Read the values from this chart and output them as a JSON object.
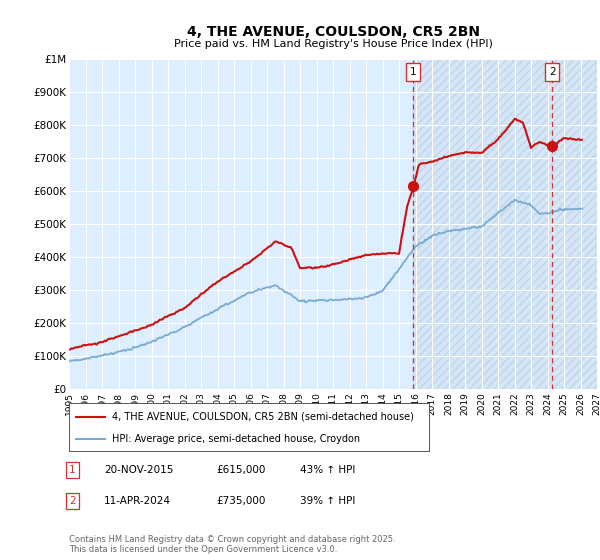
{
  "title": "4, THE AVENUE, COULSDON, CR5 2BN",
  "subtitle": "Price paid vs. HM Land Registry's House Price Index (HPI)",
  "ylim": [
    0,
    1000000
  ],
  "yticks": [
    0,
    100000,
    200000,
    300000,
    400000,
    500000,
    600000,
    700000,
    800000,
    900000,
    1000000
  ],
  "ytick_labels": [
    "£0",
    "£100K",
    "£200K",
    "£300K",
    "£400K",
    "£500K",
    "£600K",
    "£700K",
    "£800K",
    "£900K",
    "£1M"
  ],
  "hpi_color": "#7aaad0",
  "price_color": "#cc1111",
  "vline_color": "#cc3333",
  "plot_bg": "#ddeeff",
  "hatch_bg": "#ccd9ee",
  "grid_color": "#ffffff",
  "sale1_x": 2015.88,
  "sale1_y": 615000,
  "sale2_x": 2024.28,
  "sale2_y": 735000,
  "sale1_label": "20-NOV-2015",
  "sale1_price": "£615,000",
  "sale1_hpi": "43% ↑ HPI",
  "sale2_label": "11-APR-2024",
  "sale2_price": "£735,000",
  "sale2_hpi": "39% ↑ HPI",
  "footer": "Contains HM Land Registry data © Crown copyright and database right 2025.\nThis data is licensed under the Open Government Licence v3.0.",
  "legend_line1": "4, THE AVENUE, COULSDON, CR5 2BN (semi-detached house)",
  "legend_line2": "HPI: Average price, semi-detached house, Croydon",
  "xmin": 1995,
  "xmax": 2027
}
